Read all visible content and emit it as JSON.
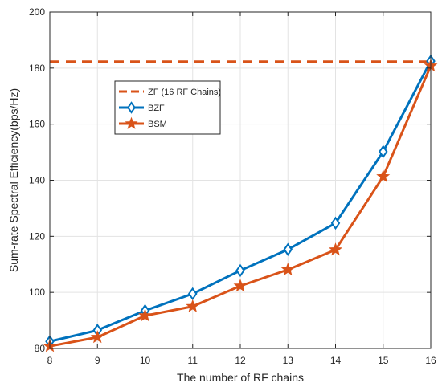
{
  "chart_data": {
    "type": "line",
    "title": "",
    "xlabel": "The number of RF chains",
    "ylabel": "Sum-rate Spectral Efficiency(bps/Hz)",
    "xlim": [
      8,
      16
    ],
    "ylim": [
      80,
      200
    ],
    "xticks": [
      8,
      9,
      10,
      11,
      12,
      13,
      14,
      15,
      16
    ],
    "yticks": [
      80,
      100,
      120,
      140,
      160,
      180,
      200
    ],
    "grid": true,
    "legend_position": "upper-left",
    "x": [
      8,
      9,
      10,
      11,
      12,
      13,
      14,
      15,
      16
    ],
    "series": [
      {
        "name": "ZF (16 RF Chains)",
        "style": "dashed",
        "marker": "none",
        "color": "#D95319",
        "values": [
          182.3,
          182.3,
          182.3,
          182.3,
          182.3,
          182.3,
          182.3,
          182.3,
          182.3
        ]
      },
      {
        "name": "BZF",
        "style": "solid",
        "marker": "diamond",
        "color": "#0072BD",
        "values": [
          82.5,
          86.5,
          93.5,
          99.5,
          107.8,
          115.3,
          124.7,
          150.2,
          182.5
        ]
      },
      {
        "name": "BSM",
        "style": "solid",
        "marker": "star",
        "color": "#D95319",
        "values": [
          80.8,
          84.0,
          91.7,
          95.0,
          102.3,
          108.1,
          115.2,
          141.3,
          180.8
        ]
      }
    ]
  }
}
